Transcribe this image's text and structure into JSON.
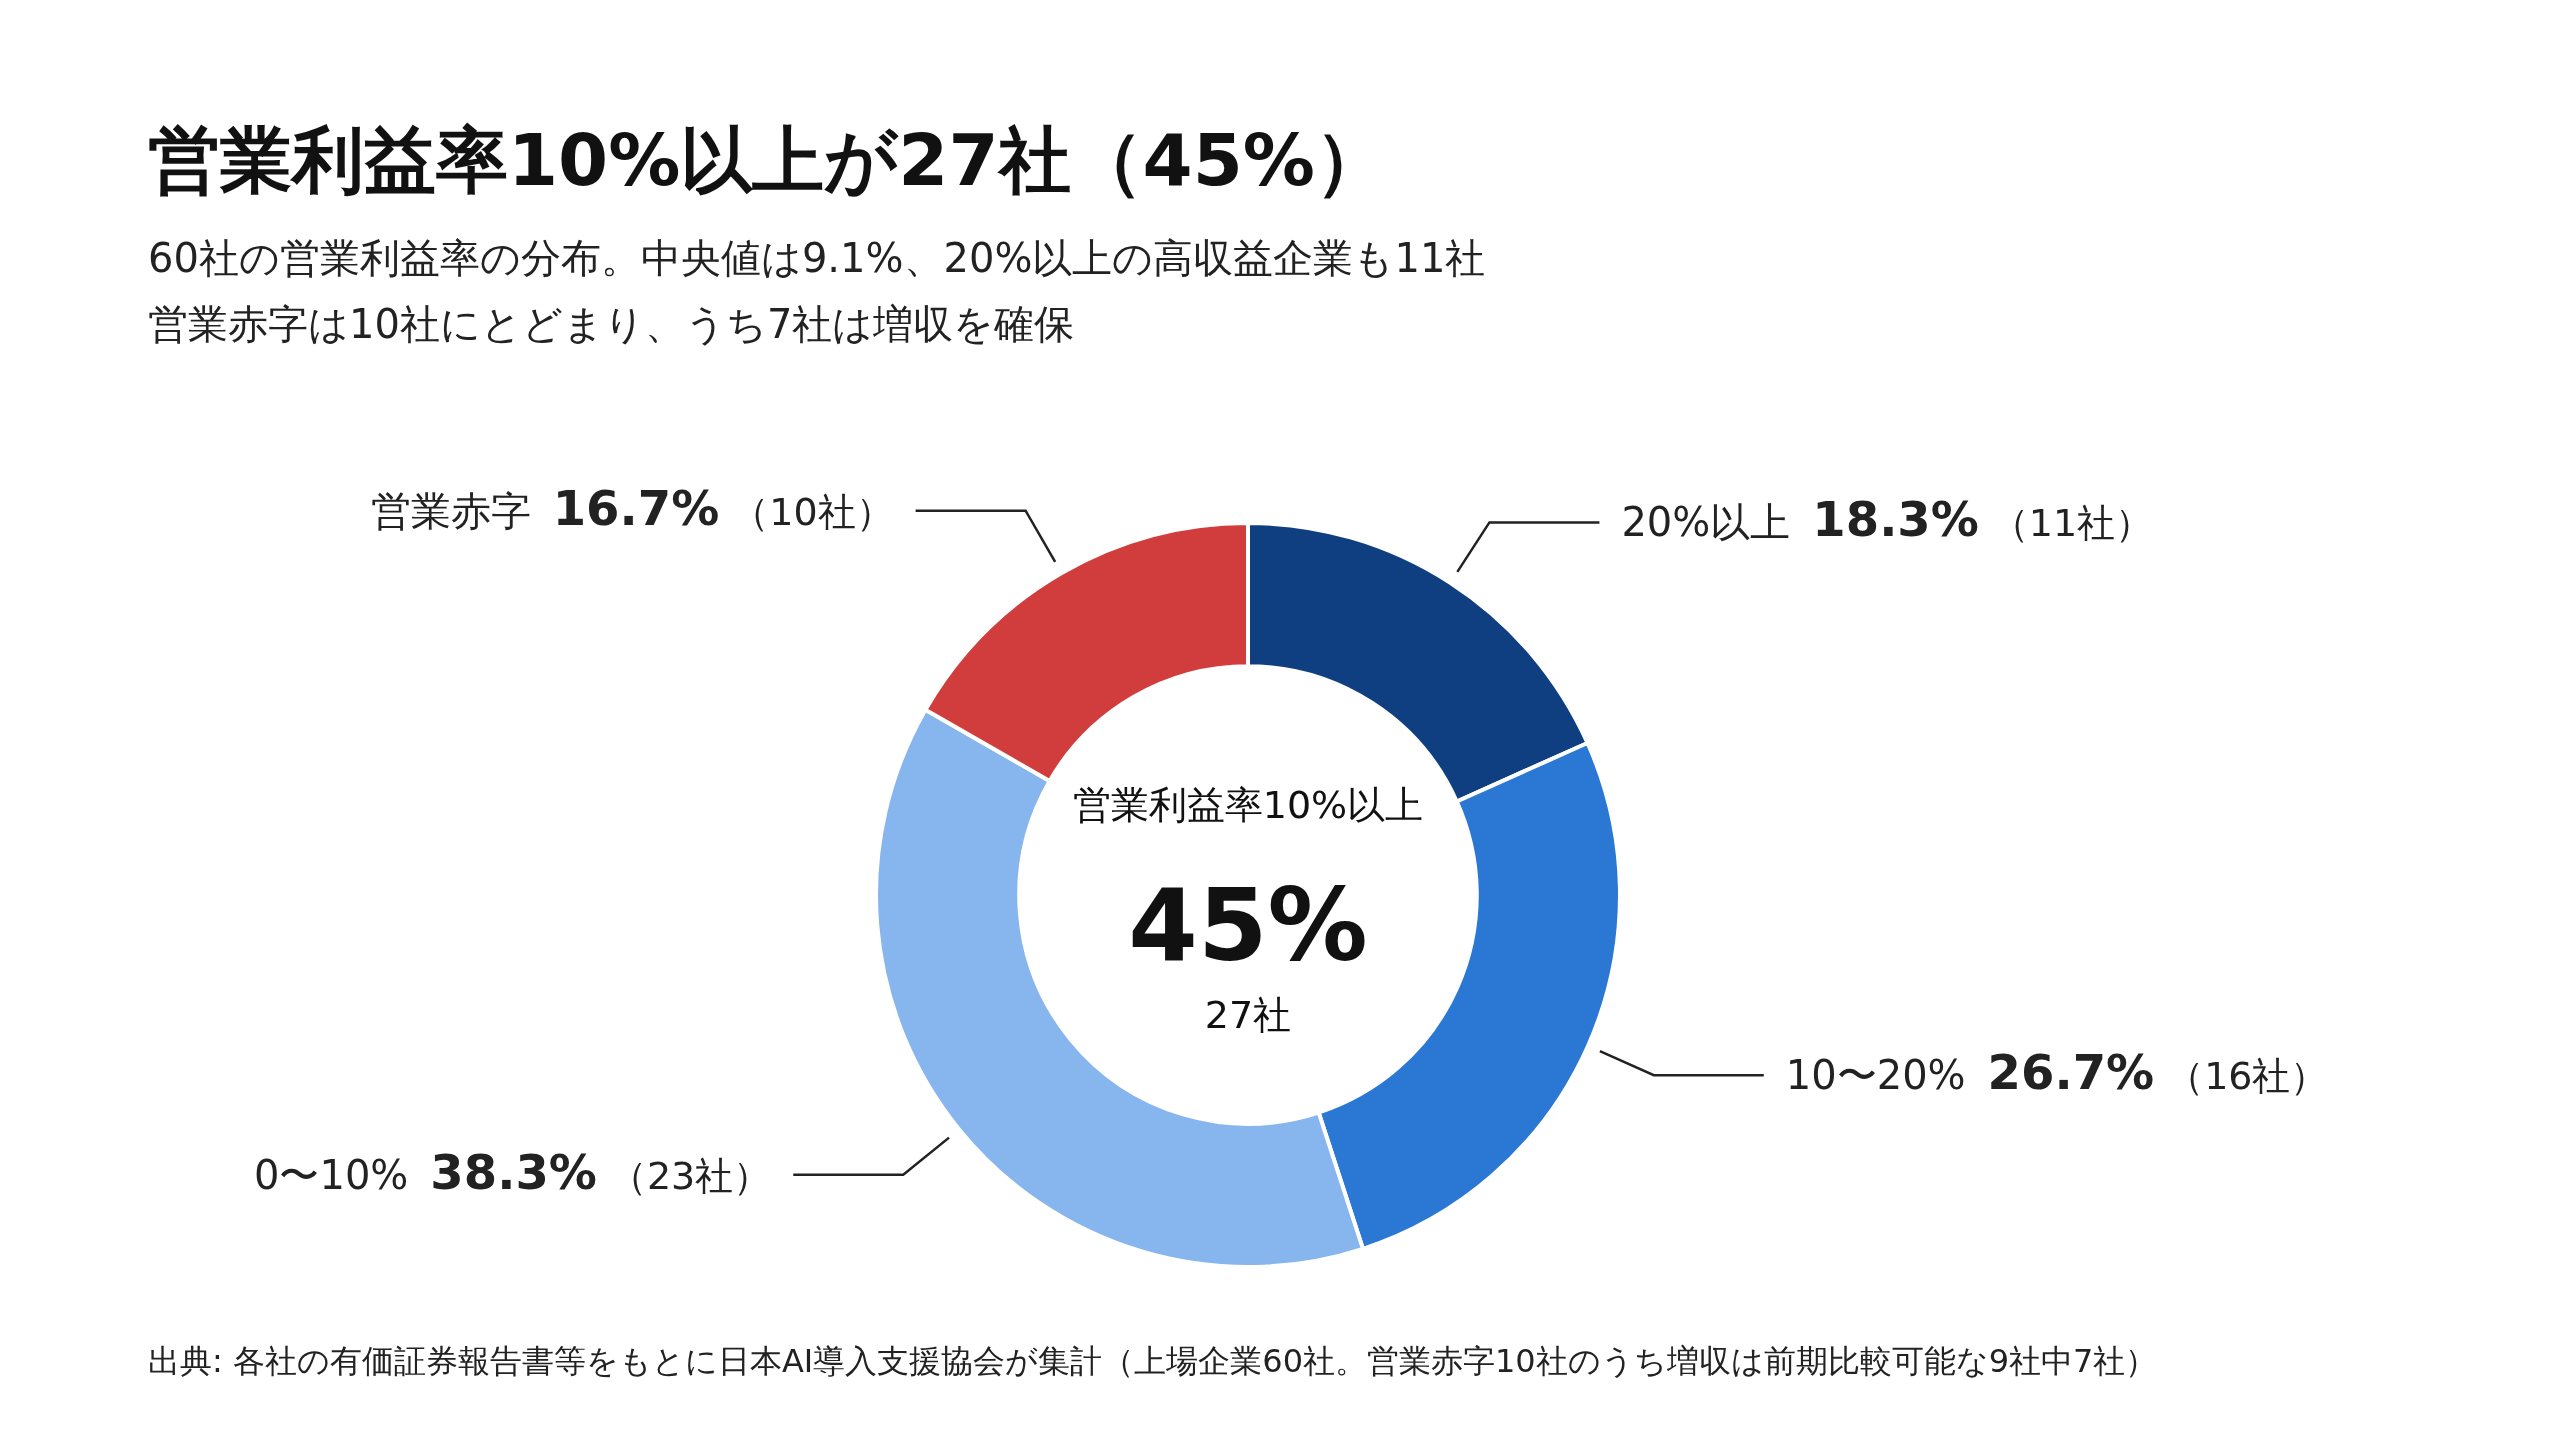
{
  "chart_data": {
    "type": "donut",
    "title": "営業利益率10%以上が27社（45%）",
    "subtitle": "60社の営業利益率の分布。中央値は9.1%、20%以上の高収益企業も11社営業赤字は10社にとどまり、うち7社は増収を確保",
    "categories": [
      "20%以上",
      "10〜20%",
      "0〜10%",
      "営業赤字"
    ],
    "values": [
      18.3,
      26.7,
      38.3,
      16.7
    ],
    "colors": [
      "#0f3f80",
      "#2a78d4",
      "#87b5ee",
      "#d13d3d"
    ],
    "value_labels": [
      "18.3%",
      "26.7%",
      "38.3%",
      "16.7%"
    ],
    "legend": false,
    "annotations": [
      {
        "text": "（11社）",
        "x": "20%以上"
      },
      {
        "text": "（16社）",
        "x": "10〜20%"
      },
      {
        "text": "（23社）",
        "x": "0〜10%"
      },
      {
        "text": "（10社）",
        "x": "営業赤字"
      },
      "営業利益率10%以上",
      "45%",
      "27社",
      "出典: 各社の有価証券報告書等をもとに日本AI導入支援協会が集計（上場企業60社。営業赤字10社のうち増収は前期比較可能な9社中7社）"
    ]
  }
}
